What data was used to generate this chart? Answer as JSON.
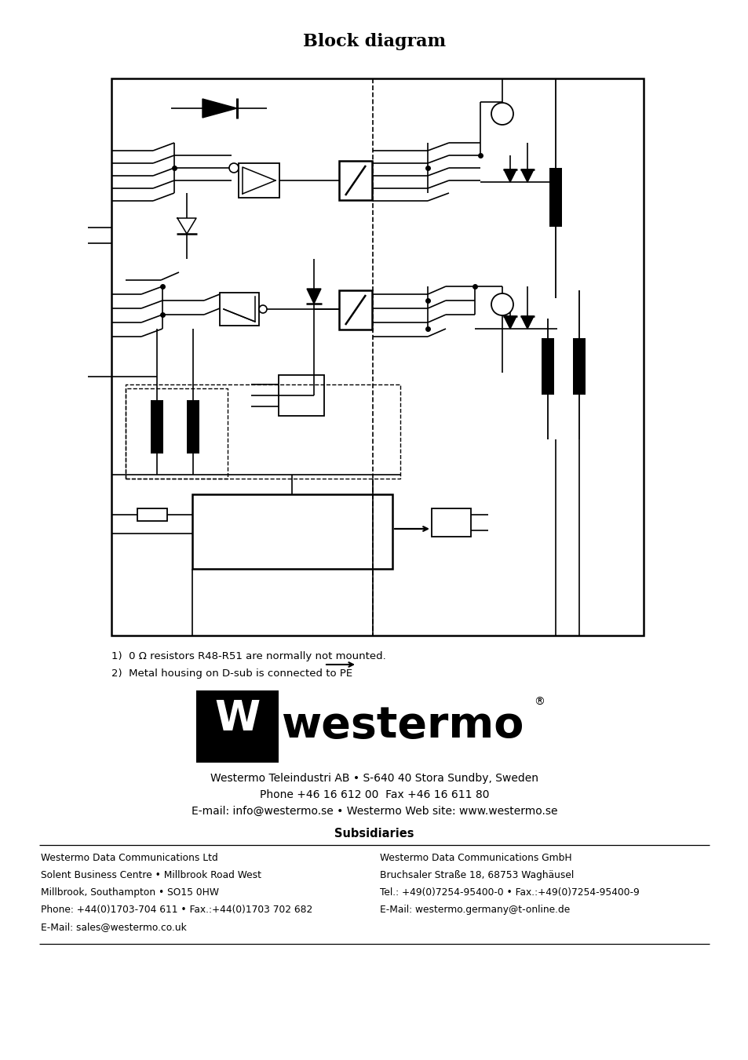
{
  "title": "Block diagram",
  "bg_color": "#ffffff",
  "note1": "1)  0 Ω resistors R48-R51 are normally not mounted.",
  "note2": "2)  Metal housing on D-sub is connected to PE",
  "company_line1": "Westermo Teleindustri AB • S-640 40 Stora Sundby, Sweden",
  "company_line2": "Phone +46 16 612 00  Fax +46 16 611 80",
  "company_line3": "E-mail: info@westermo.se • Westermo Web site: www.westermo.se",
  "subsidiaries_title": "Subsidiaries",
  "left_col": [
    "Westermo Data Communications Ltd",
    "Solent Business Centre • Millbrook Road West",
    "Millbrook, Southampton • SO15 0HW",
    "Phone: +44(0)1703-704 611 • Fax.:+44(0)1703 702 682",
    "E-Mail: sales@westermo.co.uk"
  ],
  "right_col": [
    "Westermo Data Communications GmbH",
    "Bruchsaler Straße 18, 68753 Waghäusel",
    "Tel.: +49(0)7254-95400-0 • Fax.:+49(0)7254-95400-9",
    "E-Mail: westermo.germany@t-online.de"
  ]
}
